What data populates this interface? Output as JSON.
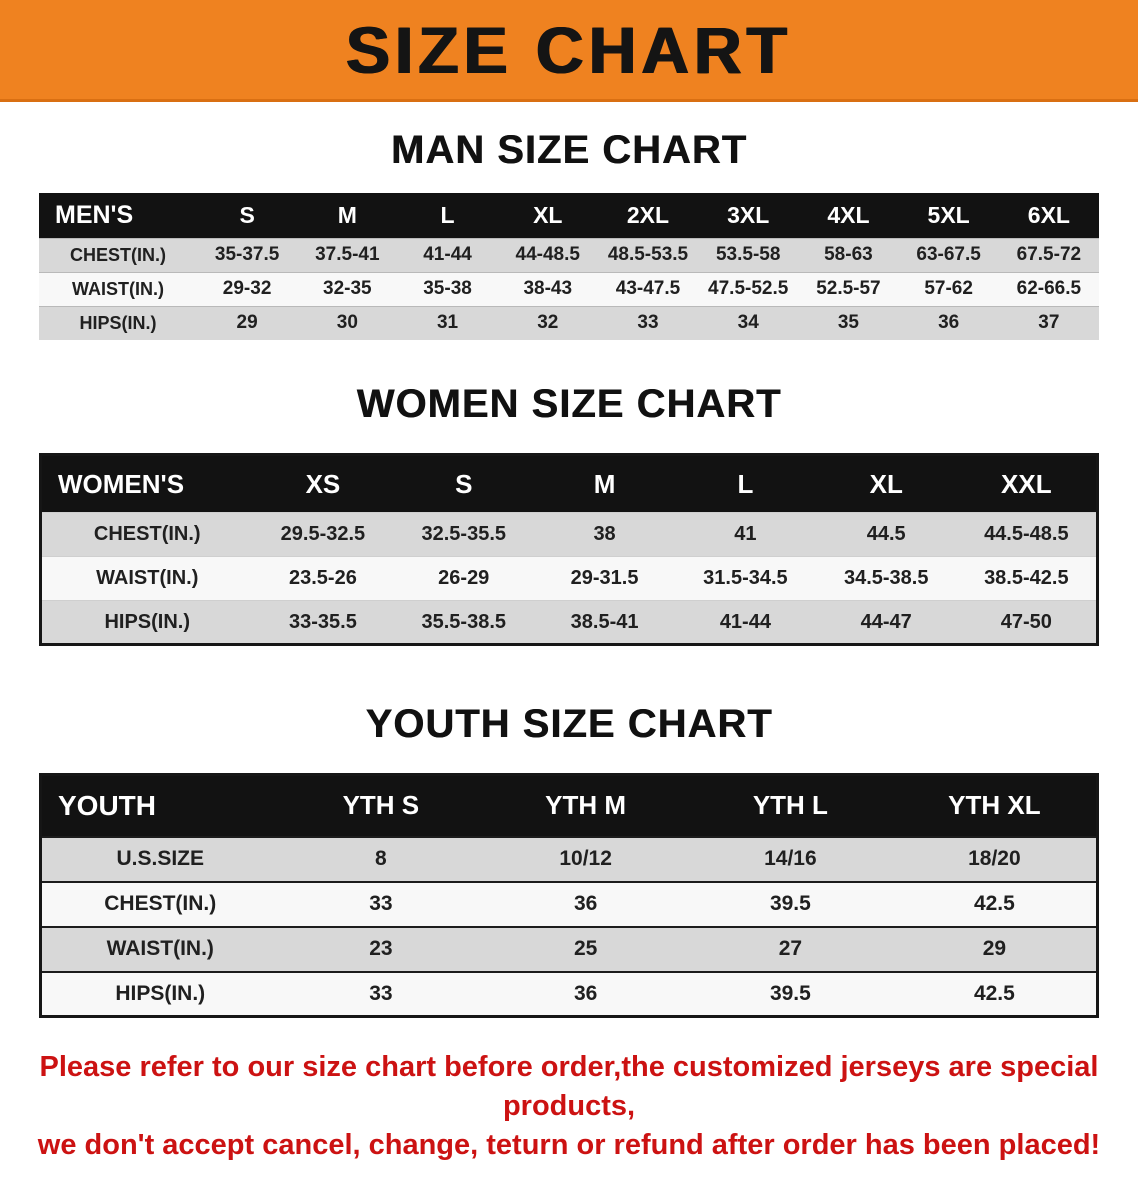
{
  "banner": {
    "title": "SIZE CHART",
    "bg_color": "#ef8220",
    "text_color": "#141414"
  },
  "colors": {
    "table_header_bg": "#121212",
    "table_header_text": "#ffffff",
    "row_shaded": "#d8d8d8",
    "disclaimer_text": "#cc1212"
  },
  "chart_data": [
    {
      "type": "table",
      "title": "MAN SIZE CHART",
      "columns": [
        "MEN'S",
        "S",
        "M",
        "L",
        "XL",
        "2XL",
        "3XL",
        "4XL",
        "5XL",
        "6XL"
      ],
      "rows": [
        [
          "CHEST(IN.)",
          "35-37.5",
          "37.5-41",
          "41-44",
          "44-48.5",
          "48.5-53.5",
          "53.5-58",
          "58-63",
          "63-67.5",
          "67.5-72"
        ],
        [
          "WAIST(IN.)",
          "29-32",
          "32-35",
          "35-38",
          "38-43",
          "43-47.5",
          "47.5-52.5",
          "52.5-57",
          "57-62",
          "62-66.5"
        ],
        [
          "HIPS(IN.)",
          "29",
          "30",
          "31",
          "32",
          "33",
          "34",
          "35",
          "36",
          "37"
        ]
      ]
    },
    {
      "type": "table",
      "title": "WOMEN SIZE CHART",
      "columns": [
        "WOMEN'S",
        "XS",
        "S",
        "M",
        "L",
        "XL",
        "XXL"
      ],
      "rows": [
        [
          "CHEST(IN.)",
          "29.5-32.5",
          "32.5-35.5",
          "38",
          "41",
          "44.5",
          "44.5-48.5"
        ],
        [
          "WAIST(IN.)",
          "23.5-26",
          "26-29",
          "29-31.5",
          "31.5-34.5",
          "34.5-38.5",
          "38.5-42.5"
        ],
        [
          "HIPS(IN.)",
          "33-35.5",
          "35.5-38.5",
          "38.5-41",
          "41-44",
          "44-47",
          "47-50"
        ]
      ]
    },
    {
      "type": "table",
      "title": "YOUTH SIZE CHART",
      "columns": [
        "YOUTH",
        "YTH S",
        "YTH M",
        "YTH L",
        "YTH XL"
      ],
      "rows": [
        [
          "U.S.SIZE",
          "8",
          "10/12",
          "14/16",
          "18/20"
        ],
        [
          "CHEST(IN.)",
          "33",
          "36",
          "39.5",
          "42.5"
        ],
        [
          "WAIST(IN.)",
          "23",
          "25",
          "27",
          "29"
        ],
        [
          "HIPS(IN.)",
          "33",
          "36",
          "39.5",
          "42.5"
        ]
      ]
    }
  ],
  "footer": {
    "line1": "Please refer to our size chart before order,the customized jerseys are special products,",
    "line2": "we don't accept cancel, change, teturn or refund after order has been placed!"
  }
}
